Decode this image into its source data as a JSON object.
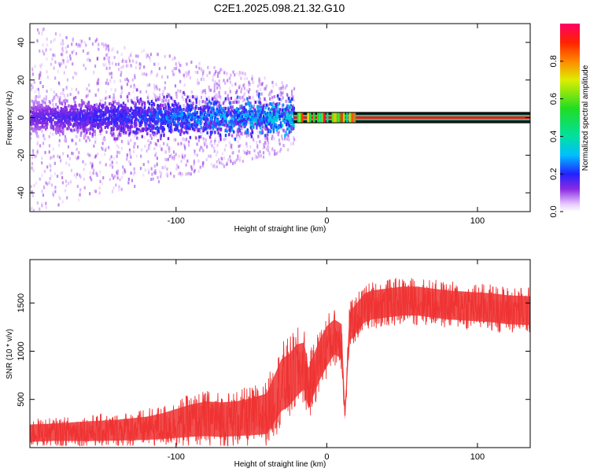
{
  "title": "C2E1.2025.098.21.32.G10",
  "chart_data": [
    {
      "type": "heatmap",
      "xlabel": "Height of straight line (km)",
      "ylabel": "Frequency (Hz)",
      "xlim": [
        -197,
        135
      ],
      "ylim": [
        -50,
        50
      ],
      "xticks": [
        -100,
        0,
        100
      ],
      "yticks": [
        -40,
        -20,
        0,
        20,
        40
      ],
      "grid": false,
      "description_bands": [
        {
          "x_range": [
            -197,
            -22
          ],
          "freq_center": 0,
          "core_halfwidth": 8,
          "scatter_halfwidth": 50,
          "intensity": [
            0.15,
            0.4
          ]
        },
        {
          "x_range": [
            -22,
            135
          ],
          "freq_center": 0,
          "core_halfwidth": 1.5,
          "intensity": [
            0.85,
            1.0
          ]
        }
      ],
      "colorbar": {
        "label": "Normalized spectral amplitude",
        "range": [
          0.0,
          1.0
        ],
        "ticks": [
          0.0,
          0.2,
          0.4,
          0.6,
          0.8
        ]
      }
    },
    {
      "type": "line",
      "xlabel": "Height of straight line (km)",
      "ylabel": "SNR (10 * v/v)",
      "xlim": [
        -197,
        135
      ],
      "ylim": [
        0,
        1950
      ],
      "xticks": [
        -100,
        0,
        100
      ],
      "yticks": [
        500,
        1000,
        1500
      ],
      "color": "#ee3333",
      "x": [
        -197,
        -180,
        -160,
        -140,
        -120,
        -110,
        -100,
        -90,
        -80,
        -70,
        -60,
        -50,
        -40,
        -35,
        -30,
        -25,
        -20,
        -15,
        -12,
        -10,
        -5,
        0,
        5,
        10,
        12,
        15,
        20,
        25,
        30,
        40,
        50,
        60,
        70,
        80,
        90,
        100,
        110,
        120,
        135
      ],
      "y": [
        150,
        160,
        170,
        180,
        200,
        220,
        250,
        280,
        300,
        290,
        300,
        320,
        350,
        500,
        650,
        700,
        800,
        850,
        600,
        700,
        900,
        1050,
        1150,
        1100,
        300,
        1250,
        1350,
        1450,
        1480,
        1500,
        1520,
        1520,
        1500,
        1480,
        1470,
        1460,
        1450,
        1430,
        1420
      ],
      "band": [
        150,
        150,
        170,
        180,
        200,
        220,
        250,
        280,
        300,
        300,
        300,
        320,
        350,
        400,
        450,
        450,
        450,
        400,
        350,
        350,
        350,
        350,
        300,
        300,
        100,
        250,
        250,
        250,
        250,
        250,
        250,
        250,
        250,
        250,
        250,
        250,
        250,
        250,
        250
      ]
    }
  ]
}
